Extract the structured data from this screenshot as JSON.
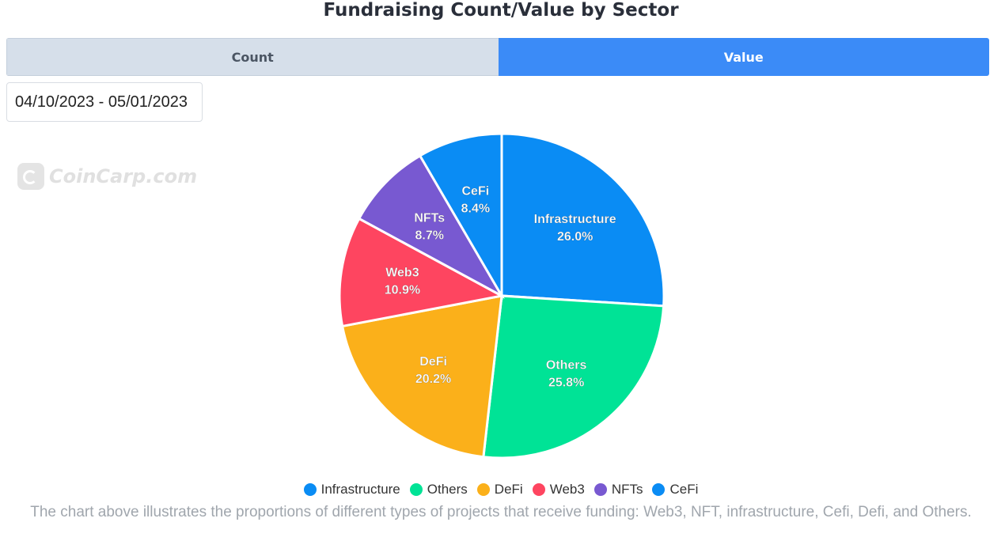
{
  "title": "Fundraising Count/Value by Sector",
  "tabs": [
    {
      "label": "Count",
      "active": false
    },
    {
      "label": "Value",
      "active": true
    }
  ],
  "date_range": "04/10/2023 - 05/01/2023",
  "watermark": "CoinCarp.com",
  "colors": {
    "Infrastructure": "#0a8cf4",
    "Others": "#00e396",
    "DeFi": "#fbb01a",
    "Web3": "#fe4560",
    "NFTs": "#7859d1",
    "CeFi": "#0a8cf4"
  },
  "chart_data": {
    "type": "pie",
    "categories": [
      "Infrastructure",
      "Others",
      "DeFi",
      "Web3",
      "NFTs",
      "CeFi"
    ],
    "values": [
      26.0,
      25.8,
      20.2,
      10.9,
      8.7,
      8.4
    ],
    "labels": [
      "26.0%",
      "25.8%",
      "20.2%",
      "10.9%",
      "8.7%",
      "8.4%"
    ],
    "title": "Fundraising Count/Value by Sector",
    "legend_position": "bottom"
  },
  "caption": "The chart above illustrates the proportions of different types of projects that receive funding: Web3, NFT, infrastructure, Cefi, Defi, and Others."
}
